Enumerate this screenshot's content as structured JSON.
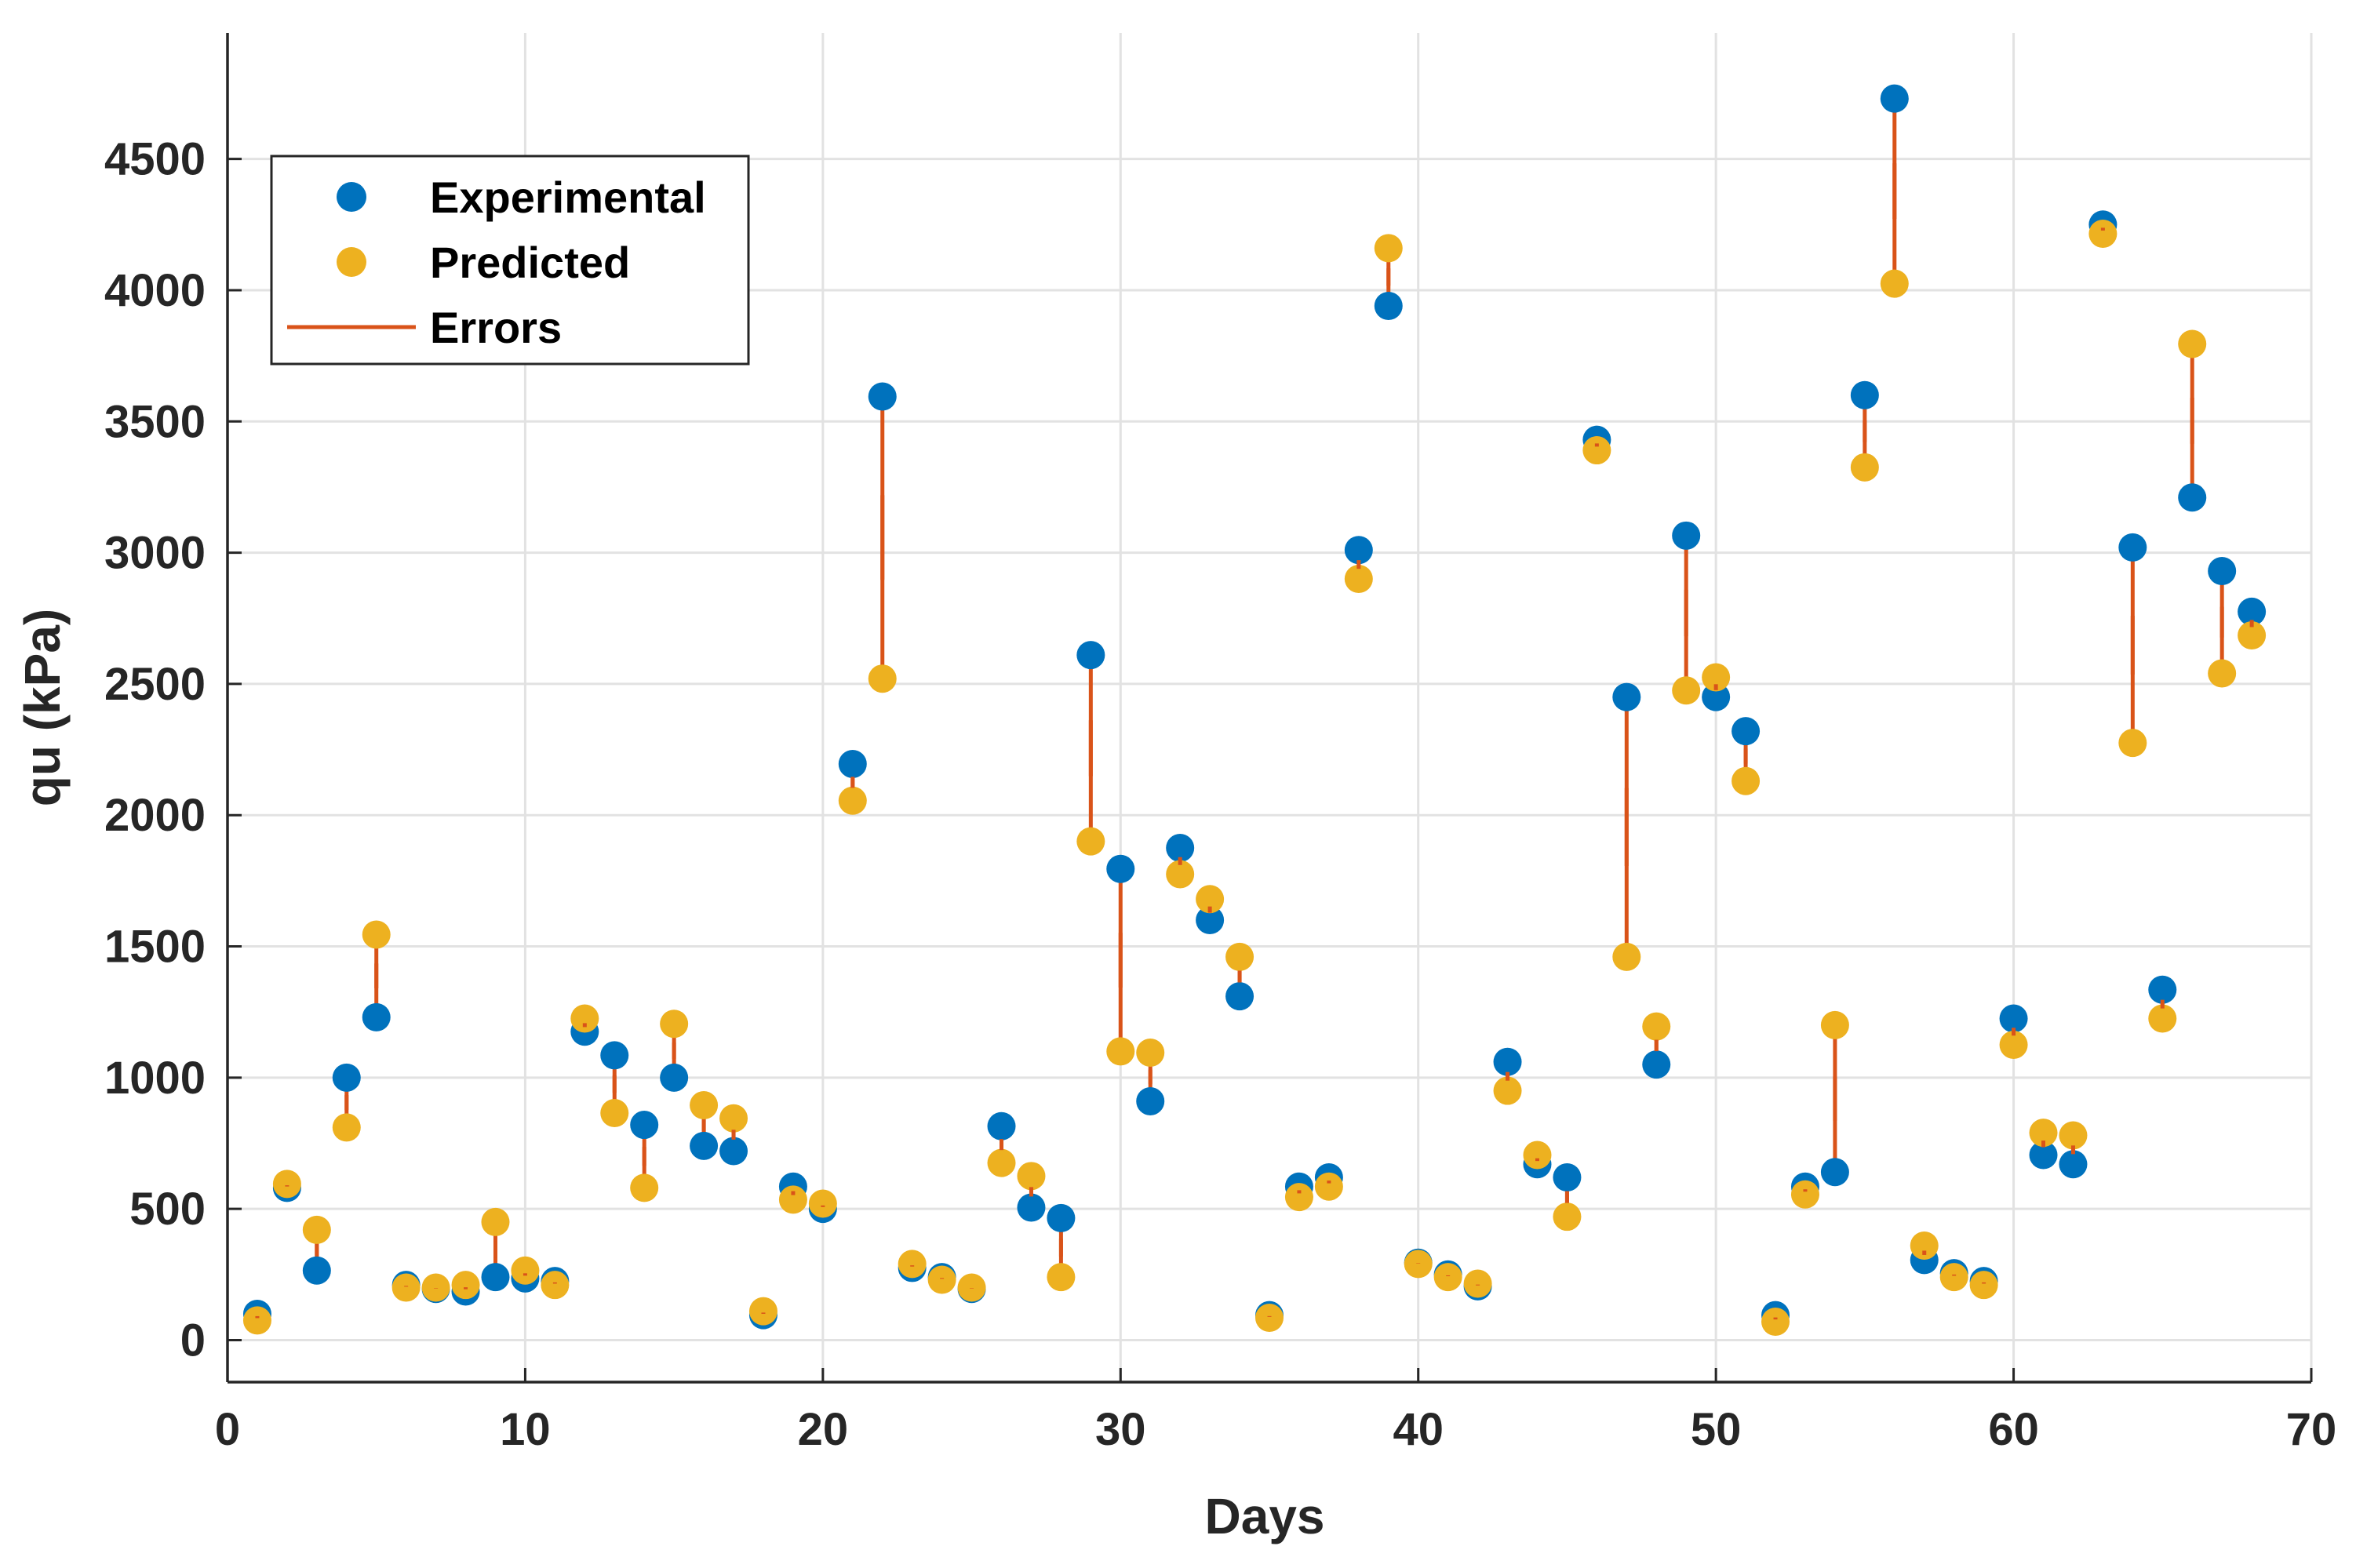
{
  "chart_data": {
    "type": "scatter",
    "title": "",
    "xlabel": "Days",
    "ylabel": "qu (kPa)",
    "xlim": [
      0,
      70
    ],
    "ylim": [
      -160,
      4980
    ],
    "xticks": [
      0,
      10,
      20,
      30,
      40,
      50,
      60,
      70
    ],
    "yticks": [
      0,
      500,
      1000,
      1500,
      2000,
      2500,
      3000,
      3500,
      4000,
      4500
    ],
    "grid": true,
    "legend": {
      "position": "top-left",
      "entries": [
        {
          "label": "Experimental",
          "marker": "circle",
          "color": "#0072BD"
        },
        {
          "label": "Predicted",
          "marker": "circle",
          "color": "#EDB120"
        },
        {
          "label": "Errors",
          "marker": "line",
          "color": "#D95319"
        }
      ]
    },
    "colors": {
      "experimental": "#0072BD",
      "predicted": "#EDB120",
      "errors": "#D95319",
      "grid": "#e2e2e2",
      "axis": "#262626"
    },
    "x": [
      1,
      2,
      3,
      4,
      5,
      6,
      7,
      8,
      9,
      10,
      11,
      12,
      13,
      14,
      15,
      16,
      17,
      18,
      19,
      20,
      21,
      22,
      23,
      24,
      25,
      26,
      27,
      28,
      29,
      30,
      31,
      32,
      33,
      34,
      35,
      36,
      37,
      38,
      39,
      40,
      41,
      42,
      43,
      44,
      45,
      46,
      47,
      48,
      49,
      50,
      51,
      52,
      53,
      54,
      55,
      56,
      57,
      58,
      59,
      60,
      61,
      62,
      63,
      64,
      65,
      66,
      67,
      68
    ],
    "series": [
      {
        "name": "Experimental",
        "values": [
          100,
          580,
          265,
          1000,
          1230,
          210,
          195,
          185,
          240,
          235,
          225,
          1175,
          1085,
          820,
          1000,
          740,
          720,
          95,
          585,
          500,
          2195,
          3595,
          275,
          240,
          195,
          815,
          505,
          465,
          2610,
          1795,
          910,
          1875,
          1600,
          1310,
          95,
          585,
          620,
          3010,
          3940,
          295,
          250,
          205,
          1060,
          670,
          620,
          3430,
          2450,
          1050,
          3065,
          2450,
          2320,
          95,
          585,
          640,
          3600,
          4730,
          305,
          255,
          225,
          1225,
          705,
          670,
          4250,
          3020,
          1335,
          3210,
          2930,
          2775
        ]
      },
      {
        "name": "Predicted",
        "values": [
          75,
          595,
          420,
          810,
          1545,
          200,
          200,
          210,
          450,
          265,
          210,
          1225,
          865,
          580,
          1205,
          895,
          845,
          110,
          535,
          520,
          2055,
          2520,
          290,
          230,
          200,
          675,
          625,
          240,
          1900,
          1100,
          1095,
          1775,
          1680,
          1460,
          85,
          545,
          585,
          2900,
          4160,
          290,
          240,
          215,
          950,
          705,
          470,
          3390,
          1460,
          1195,
          2475,
          2525,
          2130,
          70,
          555,
          1200,
          3325,
          4025,
          360,
          240,
          210,
          1125,
          790,
          780,
          4215,
          2275,
          1225,
          3795,
          2540,
          2685
        ]
      }
    ]
  }
}
